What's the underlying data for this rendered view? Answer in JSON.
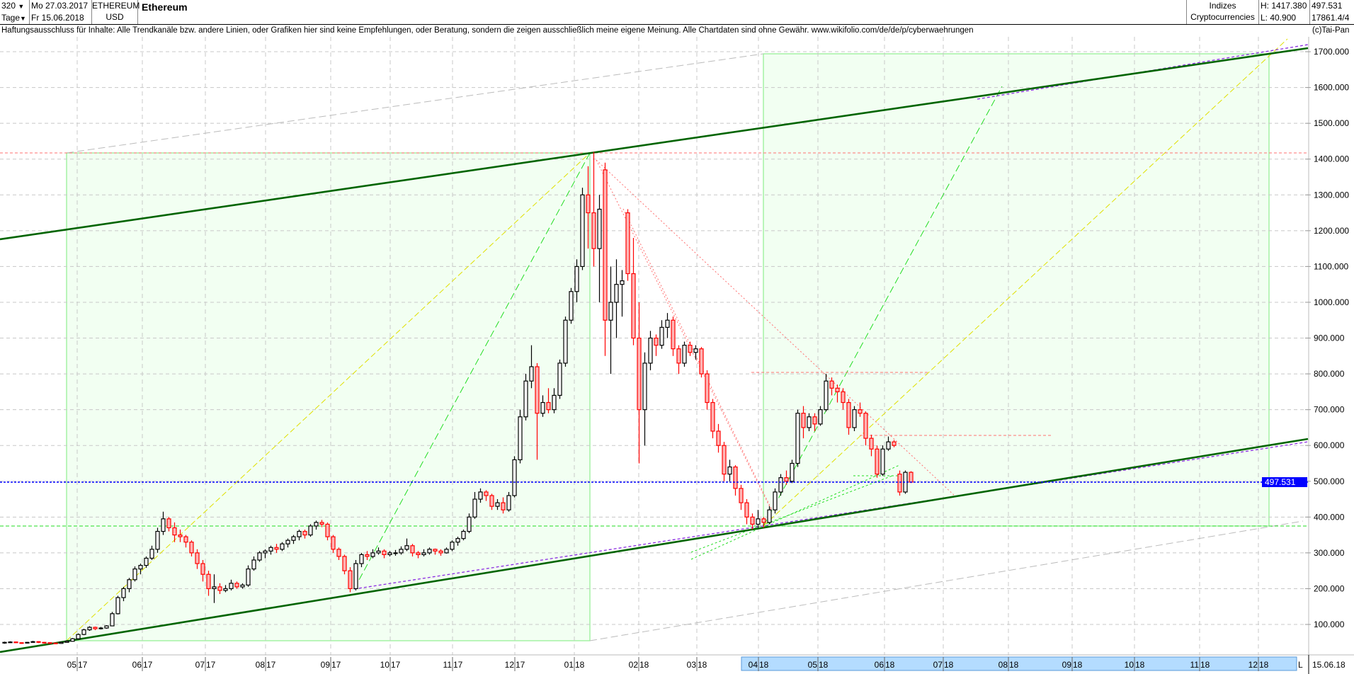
{
  "header": {
    "bars_count": "320",
    "period": "Tage",
    "start_date": "Mo 27.03.2017",
    "end_date": "Fr 15.06.2018",
    "symbol": "ETHEREUM",
    "currency": "USD",
    "title": "Ethereum",
    "group": "Indizes",
    "subgroup": "Cryptocurrencies",
    "high": "H: 1417.380",
    "low": "L: 40.900",
    "last": "497.531",
    "volume_info": "17861.4/4"
  },
  "disclaimer": "Haftungsausschluss für Inhalte: Alle Trendkanäle bzw. andere Linien, oder Grafiken hier sind keine Empfehlungen, oder Beratung, sondern die zeigen ausschließlich meine eigene Meinung. Alle Chartdaten sind ohne Gewähr.  www.wikifolio.com/de/de/p/cyberwaehrungen",
  "copyright": "(c)Tai-Pan",
  "colors": {
    "bull": "#000000",
    "bear": "#ff0000",
    "bear_fill": "#ffb4b4",
    "last_price": "#0000ff",
    "channel": "#008000",
    "zone_fill": "#f2fff2"
  },
  "chart_data": {
    "type": "candlestick",
    "title": "Ethereum",
    "ylim": [
      0,
      1750
    ],
    "y_ticks": [
      "100.000",
      "200.000",
      "300.000",
      "400.000",
      "500.000",
      "600.000",
      "700.000",
      "800.000",
      "900.000",
      "1000.000",
      "1100.000",
      "1200.000",
      "1300.000",
      "1400.000",
      "1500.000",
      "1600.000",
      "1700.000"
    ],
    "last_price_label": "497.531",
    "last_price": 497.531,
    "x_labels": [
      {
        "m": "05",
        "y": "17"
      },
      {
        "m": "06",
        "y": "17"
      },
      {
        "m": "07",
        "y": "17"
      },
      {
        "m": "08",
        "y": "17"
      },
      {
        "m": "09",
        "y": "17"
      },
      {
        "m": "10",
        "y": "17"
      },
      {
        "m": "11",
        "y": "17"
      },
      {
        "m": "12",
        "y": "17"
      },
      {
        "m": "01",
        "y": "18"
      },
      {
        "m": "02",
        "y": "18"
      },
      {
        "m": "03",
        "y": "18"
      },
      {
        "m": "04",
        "y": "18"
      },
      {
        "m": "05",
        "y": "18"
      },
      {
        "m": "06",
        "y": "18"
      },
      {
        "m": "07",
        "y": "18"
      },
      {
        "m": "08",
        "y": "18"
      },
      {
        "m": "09",
        "y": "18"
      },
      {
        "m": "10",
        "y": "18"
      },
      {
        "m": "11",
        "y": "18"
      },
      {
        "m": "12",
        "y": "18"
      }
    ],
    "x_end_marker": "L",
    "x_end_date": "15.06.18",
    "grid": true,
    "ohlc": [
      [
        48,
        52,
        46,
        50
      ],
      [
        50,
        53,
        49,
        51
      ],
      [
        51,
        52,
        48,
        49
      ],
      [
        49,
        50,
        46,
        48
      ],
      [
        48,
        51,
        47,
        50
      ],
      [
        50,
        54,
        49,
        52
      ],
      [
        52,
        53,
        48,
        50
      ],
      [
        50,
        51,
        47,
        49
      ],
      [
        49,
        50,
        46,
        48
      ],
      [
        48,
        49,
        45,
        47
      ],
      [
        47,
        51,
        46,
        50
      ],
      [
        50,
        55,
        49,
        53
      ],
      [
        53,
        62,
        52,
        60
      ],
      [
        60,
        75,
        58,
        72
      ],
      [
        72,
        88,
        70,
        85
      ],
      [
        85,
        95,
        82,
        92
      ],
      [
        92,
        94,
        84,
        88
      ],
      [
        88,
        93,
        86,
        90
      ],
      [
        90,
        98,
        88,
        96
      ],
      [
        96,
        135,
        95,
        130
      ],
      [
        130,
        180,
        128,
        175
      ],
      [
        175,
        205,
        165,
        200
      ],
      [
        200,
        230,
        190,
        225
      ],
      [
        225,
        262,
        220,
        255
      ],
      [
        255,
        270,
        240,
        265
      ],
      [
        265,
        290,
        258,
        285
      ],
      [
        285,
        320,
        280,
        310
      ],
      [
        310,
        370,
        300,
        360
      ],
      [
        360,
        415,
        350,
        395
      ],
      [
        395,
        400,
        360,
        370
      ],
      [
        370,
        385,
        330,
        350
      ],
      [
        350,
        365,
        330,
        345
      ],
      [
        345,
        350,
        315,
        330
      ],
      [
        330,
        335,
        290,
        300
      ],
      [
        300,
        310,
        255,
        270
      ],
      [
        270,
        280,
        220,
        240
      ],
      [
        240,
        250,
        180,
        200
      ],
      [
        200,
        240,
        160,
        205
      ],
      [
        205,
        215,
        185,
        195
      ],
      [
        195,
        210,
        190,
        200
      ],
      [
        200,
        225,
        195,
        215
      ],
      [
        215,
        220,
        200,
        205
      ],
      [
        205,
        215,
        200,
        210
      ],
      [
        210,
        265,
        205,
        255
      ],
      [
        255,
        290,
        250,
        280
      ],
      [
        280,
        305,
        275,
        300
      ],
      [
        300,
        310,
        285,
        305
      ],
      [
        305,
        320,
        295,
        315
      ],
      [
        315,
        325,
        300,
        310
      ],
      [
        310,
        330,
        305,
        325
      ],
      [
        325,
        340,
        315,
        335
      ],
      [
        335,
        350,
        325,
        345
      ],
      [
        345,
        365,
        335,
        360
      ],
      [
        360,
        365,
        340,
        350
      ],
      [
        350,
        380,
        345,
        375
      ],
      [
        375,
        390,
        365,
        385
      ],
      [
        385,
        392,
        372,
        380
      ],
      [
        380,
        385,
        335,
        345
      ],
      [
        345,
        350,
        300,
        310
      ],
      [
        310,
        315,
        280,
        290
      ],
      [
        290,
        295,
        240,
        250
      ],
      [
        250,
        260,
        190,
        200
      ],
      [
        200,
        280,
        195,
        270
      ],
      [
        270,
        300,
        260,
        295
      ],
      [
        295,
        305,
        280,
        290
      ],
      [
        290,
        310,
        285,
        300
      ],
      [
        300,
        315,
        295,
        305
      ],
      [
        305,
        310,
        285,
        295
      ],
      [
        295,
        305,
        290,
        300
      ],
      [
        300,
        308,
        292,
        300
      ],
      [
        300,
        318,
        295,
        310
      ],
      [
        310,
        340,
        305,
        320
      ],
      [
        320,
        325,
        290,
        300
      ],
      [
        300,
        305,
        285,
        295
      ],
      [
        295,
        310,
        290,
        300
      ],
      [
        300,
        315,
        295,
        310
      ],
      [
        310,
        312,
        295,
        305
      ],
      [
        305,
        310,
        292,
        300
      ],
      [
        300,
        315,
        298,
        310
      ],
      [
        310,
        335,
        305,
        330
      ],
      [
        330,
        345,
        320,
        340
      ],
      [
        340,
        365,
        335,
        360
      ],
      [
        360,
        410,
        355,
        400
      ],
      [
        400,
        470,
        395,
        450
      ],
      [
        450,
        480,
        440,
        470
      ],
      [
        470,
        475,
        445,
        460
      ],
      [
        460,
        465,
        420,
        430
      ],
      [
        430,
        450,
        420,
        440
      ],
      [
        440,
        455,
        410,
        420
      ],
      [
        420,
        470,
        415,
        460
      ],
      [
        460,
        570,
        455,
        560
      ],
      [
        560,
        700,
        550,
        680
      ],
      [
        680,
        800,
        670,
        780
      ],
      [
        780,
        880,
        760,
        820
      ],
      [
        820,
        830,
        560,
        690
      ],
      [
        690,
        740,
        680,
        720
      ],
      [
        720,
        760,
        690,
        700
      ],
      [
        700,
        760,
        690,
        740
      ],
      [
        740,
        840,
        730,
        830
      ],
      [
        830,
        960,
        820,
        950
      ],
      [
        950,
        1040,
        940,
        1030
      ],
      [
        1030,
        1120,
        1000,
        1100
      ],
      [
        1100,
        1320,
        1090,
        1300
      ],
      [
        1300,
        1380,
        1150,
        1250
      ],
      [
        1250,
        1420,
        1100,
        1150
      ],
      [
        1150,
        1300,
        1000,
        1260
      ],
      [
        1370,
        1390,
        850,
        950
      ],
      [
        950,
        1100,
        800,
        1000
      ],
      [
        1000,
        1120,
        900,
        1050
      ],
      [
        1050,
        1090,
        960,
        1060
      ],
      [
        1250,
        1260,
        1060,
        1080
      ],
      [
        1080,
        1180,
        880,
        900
      ],
      [
        900,
        1000,
        550,
        700
      ],
      [
        700,
        860,
        600,
        830
      ],
      [
        830,
        920,
        810,
        900
      ],
      [
        900,
        910,
        850,
        880
      ],
      [
        880,
        950,
        870,
        930
      ],
      [
        930,
        970,
        900,
        950
      ],
      [
        950,
        960,
        850,
        870
      ],
      [
        870,
        880,
        800,
        830
      ],
      [
        830,
        890,
        820,
        880
      ],
      [
        880,
        890,
        850,
        860
      ],
      [
        860,
        880,
        840,
        870
      ],
      [
        870,
        875,
        790,
        800
      ],
      [
        800,
        810,
        700,
        720
      ],
      [
        720,
        730,
        620,
        640
      ],
      [
        640,
        660,
        580,
        600
      ],
      [
        600,
        610,
        500,
        520
      ],
      [
        520,
        560,
        500,
        540
      ],
      [
        540,
        545,
        460,
        480
      ],
      [
        480,
        490,
        420,
        440
      ],
      [
        440,
        450,
        380,
        400
      ],
      [
        400,
        410,
        365,
        380
      ],
      [
        380,
        420,
        370,
        395
      ],
      [
        395,
        400,
        370,
        385
      ],
      [
        385,
        430,
        380,
        420
      ],
      [
        420,
        480,
        410,
        470
      ],
      [
        470,
        520,
        460,
        510
      ],
      [
        510,
        530,
        490,
        500
      ],
      [
        500,
        560,
        495,
        550
      ],
      [
        550,
        700,
        540,
        690
      ],
      [
        690,
        710,
        620,
        650
      ],
      [
        650,
        690,
        640,
        680
      ],
      [
        680,
        690,
        640,
        660
      ],
      [
        660,
        710,
        655,
        700
      ],
      [
        700,
        800,
        695,
        780
      ],
      [
        780,
        790,
        740,
        760
      ],
      [
        760,
        770,
        720,
        750
      ],
      [
        750,
        760,
        700,
        720
      ],
      [
        720,
        730,
        630,
        650
      ],
      [
        650,
        710,
        640,
        700
      ],
      [
        700,
        720,
        680,
        690
      ],
      [
        690,
        695,
        600,
        620
      ],
      [
        620,
        630,
        570,
        590
      ],
      [
        590,
        600,
        510,
        520
      ],
      [
        520,
        600,
        515,
        590
      ],
      [
        590,
        625,
        585,
        610
      ],
      [
        610,
        615,
        595,
        600
      ],
      [
        520,
        530,
        460,
        470
      ],
      [
        470,
        530,
        465,
        525
      ],
      [
        525,
        528,
        495,
        497.531
      ]
    ]
  }
}
